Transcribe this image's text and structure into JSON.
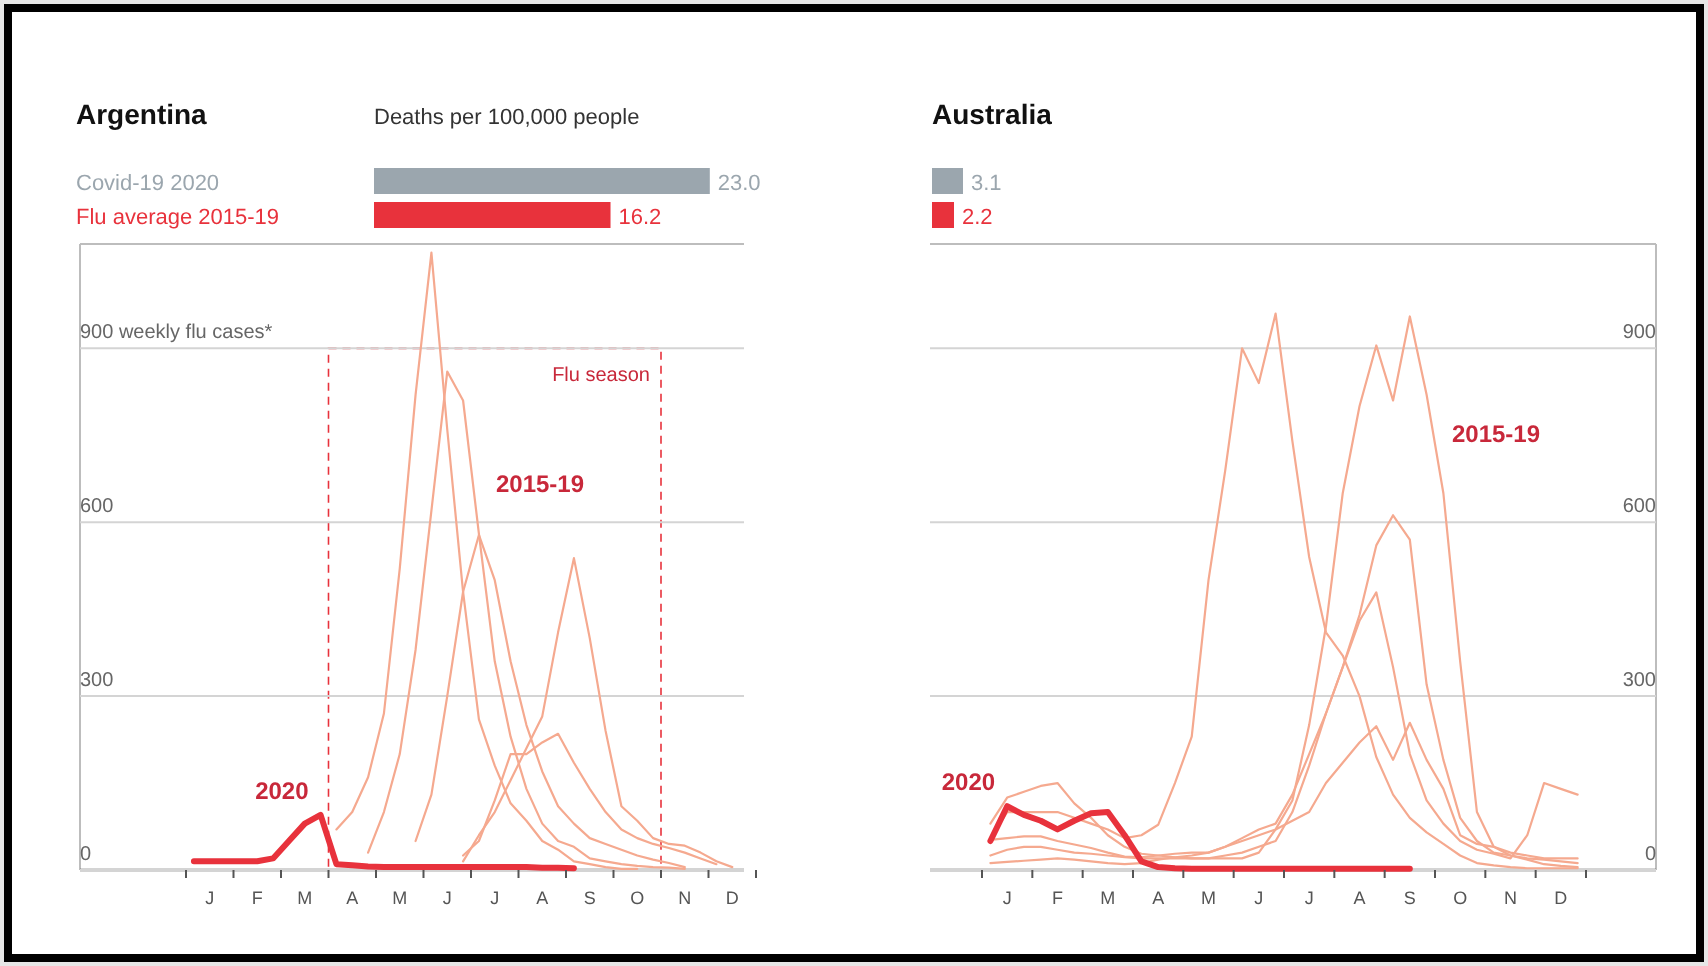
{
  "chart_data": [
    {
      "type": "bar",
      "orientation": "horizontal",
      "title": "Argentina",
      "subtitle": "Deaths per 100,000 people",
      "categories": [
        "Covid-19 2020",
        "Flu average 2015-19"
      ],
      "values": [
        23.0,
        16.2
      ],
      "colors": [
        "#9ba6ae",
        "#e8323c"
      ],
      "value_labels": [
        "23.0",
        "16.2"
      ]
    },
    {
      "type": "line",
      "ylim": [
        0,
        1080
      ],
      "yticks": [
        0,
        300,
        600,
        {
          "value": 900,
          "label": "900 weekly flu cases*"
        }
      ],
      "categories": [
        null,
        "J",
        null,
        null,
        "F",
        null,
        null,
        "M",
        null,
        null,
        "A",
        null,
        null,
        "M",
        null,
        null,
        "J",
        null,
        null,
        "J",
        null,
        null,
        "A",
        null,
        null,
        "S",
        null,
        null,
        "O",
        null,
        null,
        "N",
        null,
        null,
        "D",
        null
      ],
      "grid": "y",
      "annotations": [
        "2015-19",
        "Flu season"
      ],
      "series": [
        {
          "color": "#f5a98f",
          "values": [
            null,
            null,
            null,
            null,
            null,
            null,
            null,
            null,
            null,
            70,
            100,
            160,
            270,
            520,
            820,
            1065,
            760,
            480,
            260,
            180,
            115,
            85,
            50,
            35,
            15,
            10,
            5,
            2,
            2,
            null,
            null,
            null,
            null,
            null,
            null,
            null
          ]
        },
        {
          "color": "#f5a98f",
          "values": [
            null,
            null,
            null,
            null,
            null,
            null,
            null,
            null,
            null,
            null,
            null,
            30,
            100,
            200,
            380,
            620,
            860,
            810,
            580,
            360,
            230,
            140,
            80,
            50,
            40,
            20,
            15,
            10,
            7,
            5,
            4,
            2,
            null,
            null,
            null,
            null
          ]
        },
        {
          "color": "#f5a98f",
          "values": [
            null,
            null,
            null,
            null,
            null,
            null,
            null,
            null,
            null,
            null,
            null,
            null,
            null,
            null,
            50,
            130,
            300,
            480,
            578,
            500,
            360,
            250,
            170,
            110,
            80,
            55,
            45,
            35,
            25,
            18,
            12,
            5,
            null,
            null,
            null,
            null
          ]
        },
        {
          "color": "#f5a98f",
          "values": [
            null,
            null,
            null,
            null,
            null,
            null,
            null,
            null,
            null,
            null,
            null,
            null,
            null,
            null,
            null,
            null,
            null,
            15,
            60,
            100,
            155,
            210,
            265,
            410,
            538,
            400,
            240,
            110,
            85,
            55,
            45,
            42,
            30,
            15,
            5,
            null
          ]
        },
        {
          "color": "#f5a98f",
          "values": [
            null,
            null,
            null,
            null,
            null,
            null,
            null,
            null,
            null,
            null,
            null,
            null,
            null,
            null,
            null,
            null,
            null,
            25,
            50,
            120,
            200,
            200,
            220,
            235,
            185,
            140,
            100,
            70,
            55,
            45,
            38,
            30,
            20,
            10,
            null,
            null
          ]
        },
        {
          "name": "2020",
          "color": "#e8323c",
          "values": [
            15,
            15,
            15,
            15,
            15,
            20,
            50,
            80,
            95,
            10,
            8,
            6,
            5,
            5,
            5,
            5,
            5,
            5,
            5,
            5,
            5,
            5,
            4,
            4,
            3,
            null,
            null,
            null,
            null,
            null,
            null,
            null,
            null,
            null,
            null,
            null
          ]
        }
      ]
    },
    {
      "type": "bar",
      "orientation": "horizontal",
      "title": "Australia",
      "categories": [
        null,
        null
      ],
      "values": [
        3.1,
        2.2
      ],
      "colors": [
        "#9ba6ae",
        "#e8323c"
      ],
      "value_labels": [
        "3.1",
        "2.2"
      ]
    },
    {
      "type": "line",
      "ylim": [
        0,
        1080
      ],
      "yticks": [
        0,
        300,
        600,
        900
      ],
      "categories": [
        null,
        "J",
        null,
        null,
        "F",
        null,
        null,
        "M",
        null,
        null,
        "A",
        null,
        null,
        "M",
        null,
        null,
        "J",
        null,
        null,
        "J",
        null,
        null,
        "A",
        null,
        null,
        "S",
        null,
        null,
        "O",
        null,
        null,
        "N",
        null,
        null,
        "D",
        null
      ],
      "grid": "y",
      "annotations": [
        "2015-19"
      ],
      "series": [
        {
          "color": "#f5a98f",
          "values": [
            55,
            100,
            100,
            100,
            100,
            90,
            80,
            70,
            55,
            60,
            78,
            150,
            230,
            500,
            690,
            900,
            840,
            960,
            740,
            540,
            410,
            370,
            300,
            195,
            130,
            90,
            65,
            45,
            25,
            12,
            8,
            5,
            3,
            3,
            3,
            3
          ]
        },
        {
          "color": "#f5a98f",
          "values": [
            80,
            125,
            135,
            145,
            150,
            115,
            90,
            60,
            40,
            28,
            25,
            22,
            20,
            20,
            20,
            20,
            30,
            70,
            120,
            250,
            420,
            650,
            800,
            905,
            810,
            955,
            820,
            650,
            360,
            100,
            40,
            25,
            18,
            10,
            7,
            5
          ]
        },
        {
          "color": "#f5a98f",
          "values": [
            25,
            35,
            40,
            40,
            35,
            30,
            28,
            25,
            22,
            20,
            20,
            20,
            20,
            20,
            25,
            30,
            40,
            50,
            100,
            180,
            270,
            350,
            440,
            560,
            612,
            570,
            320,
            190,
            90,
            50,
            30,
            25,
            20,
            18,
            15,
            12
          ]
        },
        {
          "color": "#f5a98f",
          "values": [
            52,
            55,
            58,
            58,
            50,
            44,
            38,
            30,
            23,
            22,
            25,
            28,
            30,
            30,
            40,
            55,
            70,
            80,
            130,
            200,
            270,
            350,
            430,
            479,
            350,
            200,
            120,
            80,
            50,
            35,
            28,
            20,
            60,
            150,
            140,
            130
          ]
        },
        {
          "color": "#f5a98f",
          "values": [
            12,
            14,
            16,
            18,
            20,
            18,
            15,
            12,
            10,
            12,
            18,
            22,
            25,
            30,
            40,
            50,
            60,
            70,
            85,
            100,
            150,
            185,
            220,
            248,
            190,
            254,
            190,
            140,
            60,
            45,
            40,
            30,
            25,
            20,
            20,
            20
          ]
        },
        {
          "name": "2020",
          "color": "#e8323c",
          "values": [
            50,
            110,
            95,
            85,
            70,
            85,
            98,
            100,
            60,
            15,
            5,
            3,
            2,
            2,
            2,
            2,
            2,
            2,
            2,
            2,
            2,
            2,
            2,
            2,
            2,
            2,
            null,
            null,
            null,
            null,
            null,
            null,
            null,
            null,
            null,
            null
          ]
        }
      ]
    }
  ]
}
